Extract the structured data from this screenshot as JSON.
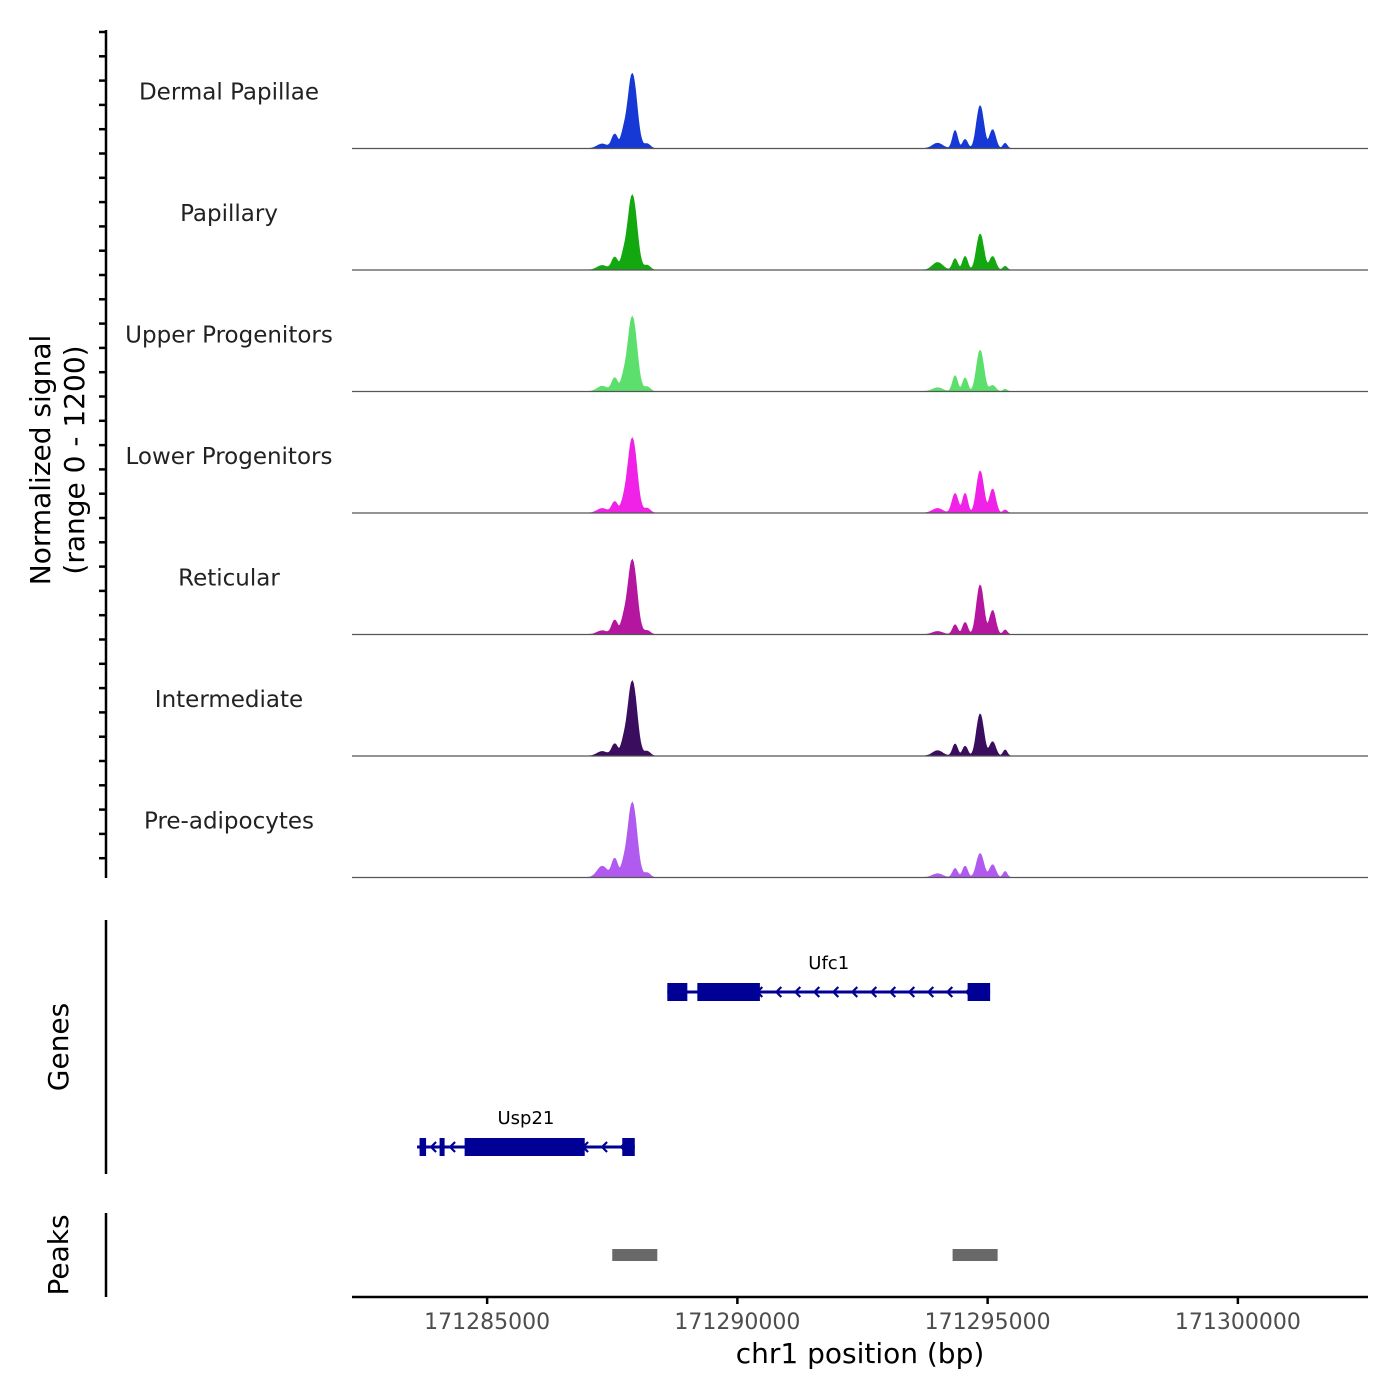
{
  "chart_data": {
    "type": "area",
    "title": "",
    "ylabel_line1": "Normalized signal",
    "ylabel_line2": "(range 0 - 1200)",
    "xlabel": "chr1 position (bp)",
    "x_range": [
      171282300,
      171302600
    ],
    "y_range": [
      0,
      1200
    ],
    "x_ticks": [
      171285000,
      171290000,
      171295000,
      171300000
    ],
    "x_tick_labels": [
      "171285000",
      "171290000",
      "171295000",
      "171300000"
    ],
    "series": [
      {
        "name": "Dermal Papillae",
        "color": "#1639d6",
        "peaks": [
          {
            "x": 171287300,
            "h": 0.06,
            "w": 100
          },
          {
            "x": 171287550,
            "h": 0.19,
            "w": 60
          },
          {
            "x": 171287720,
            "h": 0.15,
            "w": 50
          },
          {
            "x": 171287900,
            "h": 1.0,
            "w": 90
          },
          {
            "x": 171288200,
            "h": 0.06,
            "w": 60
          },
          {
            "x": 171294000,
            "h": 0.07,
            "w": 100
          },
          {
            "x": 171294350,
            "h": 0.24,
            "w": 50
          },
          {
            "x": 171294550,
            "h": 0.12,
            "w": 50
          },
          {
            "x": 171294850,
            "h": 0.57,
            "w": 70
          },
          {
            "x": 171295100,
            "h": 0.25,
            "w": 60
          },
          {
            "x": 171295350,
            "h": 0.07,
            "w": 40
          }
        ]
      },
      {
        "name": "Papillary",
        "color": "#13a810",
        "peaks": [
          {
            "x": 171287300,
            "h": 0.06,
            "w": 100
          },
          {
            "x": 171287550,
            "h": 0.17,
            "w": 60
          },
          {
            "x": 171287720,
            "h": 0.14,
            "w": 50
          },
          {
            "x": 171287900,
            "h": 1.0,
            "w": 90
          },
          {
            "x": 171288200,
            "h": 0.06,
            "w": 60
          },
          {
            "x": 171294000,
            "h": 0.1,
            "w": 100
          },
          {
            "x": 171294350,
            "h": 0.15,
            "w": 50
          },
          {
            "x": 171294550,
            "h": 0.18,
            "w": 50
          },
          {
            "x": 171294850,
            "h": 0.48,
            "w": 70
          },
          {
            "x": 171295100,
            "h": 0.18,
            "w": 60
          },
          {
            "x": 171295350,
            "h": 0.05,
            "w": 40
          }
        ]
      },
      {
        "name": "Upper Progenitors",
        "color": "#5cdf6c",
        "peaks": [
          {
            "x": 171287300,
            "h": 0.07,
            "w": 100
          },
          {
            "x": 171287550,
            "h": 0.18,
            "w": 60
          },
          {
            "x": 171287720,
            "h": 0.13,
            "w": 50
          },
          {
            "x": 171287900,
            "h": 1.0,
            "w": 90
          },
          {
            "x": 171288200,
            "h": 0.06,
            "w": 60
          },
          {
            "x": 171294000,
            "h": 0.05,
            "w": 100
          },
          {
            "x": 171294350,
            "h": 0.21,
            "w": 50
          },
          {
            "x": 171294550,
            "h": 0.18,
            "w": 50
          },
          {
            "x": 171294850,
            "h": 0.55,
            "w": 70
          },
          {
            "x": 171295100,
            "h": 0.08,
            "w": 60
          },
          {
            "x": 171295350,
            "h": 0.03,
            "w": 40
          }
        ]
      },
      {
        "name": "Lower Progenitors",
        "color": "#f022e8",
        "peaks": [
          {
            "x": 171287300,
            "h": 0.06,
            "w": 100
          },
          {
            "x": 171287550,
            "h": 0.15,
            "w": 60
          },
          {
            "x": 171287720,
            "h": 0.1,
            "w": 50
          },
          {
            "x": 171287900,
            "h": 1.0,
            "w": 90
          },
          {
            "x": 171288200,
            "h": 0.06,
            "w": 60
          },
          {
            "x": 171294000,
            "h": 0.06,
            "w": 100
          },
          {
            "x": 171294350,
            "h": 0.26,
            "w": 60
          },
          {
            "x": 171294550,
            "h": 0.26,
            "w": 50
          },
          {
            "x": 171294850,
            "h": 0.56,
            "w": 70
          },
          {
            "x": 171295100,
            "h": 0.32,
            "w": 60
          },
          {
            "x": 171295350,
            "h": 0.04,
            "w": 40
          }
        ]
      },
      {
        "name": "Reticular",
        "color": "#b5169f",
        "peaks": [
          {
            "x": 171287300,
            "h": 0.05,
            "w": 100
          },
          {
            "x": 171287550,
            "h": 0.19,
            "w": 60
          },
          {
            "x": 171287720,
            "h": 0.14,
            "w": 50
          },
          {
            "x": 171287900,
            "h": 1.0,
            "w": 90
          },
          {
            "x": 171288200,
            "h": 0.05,
            "w": 60
          },
          {
            "x": 171294000,
            "h": 0.04,
            "w": 100
          },
          {
            "x": 171294350,
            "h": 0.13,
            "w": 50
          },
          {
            "x": 171294550,
            "h": 0.16,
            "w": 50
          },
          {
            "x": 171294850,
            "h": 0.66,
            "w": 70
          },
          {
            "x": 171295100,
            "h": 0.32,
            "w": 60
          },
          {
            "x": 171295350,
            "h": 0.06,
            "w": 40
          }
        ]
      },
      {
        "name": "Intermediate",
        "color": "#3a0d5e",
        "peaks": [
          {
            "x": 171287300,
            "h": 0.06,
            "w": 100
          },
          {
            "x": 171287550,
            "h": 0.16,
            "w": 60
          },
          {
            "x": 171287720,
            "h": 0.13,
            "w": 50
          },
          {
            "x": 171287900,
            "h": 1.0,
            "w": 90
          },
          {
            "x": 171288200,
            "h": 0.06,
            "w": 60
          },
          {
            "x": 171294000,
            "h": 0.07,
            "w": 100
          },
          {
            "x": 171294350,
            "h": 0.16,
            "w": 50
          },
          {
            "x": 171294550,
            "h": 0.13,
            "w": 50
          },
          {
            "x": 171294850,
            "h": 0.56,
            "w": 70
          },
          {
            "x": 171295100,
            "h": 0.19,
            "w": 60
          },
          {
            "x": 171295350,
            "h": 0.08,
            "w": 40
          }
        ]
      },
      {
        "name": "Pre-adipocytes",
        "color": "#b15aef",
        "peaks": [
          {
            "x": 171287300,
            "h": 0.15,
            "w": 100
          },
          {
            "x": 171287550,
            "h": 0.25,
            "w": 60
          },
          {
            "x": 171287720,
            "h": 0.12,
            "w": 50
          },
          {
            "x": 171287900,
            "h": 1.0,
            "w": 90
          },
          {
            "x": 171288200,
            "h": 0.06,
            "w": 60
          },
          {
            "x": 171294000,
            "h": 0.05,
            "w": 100
          },
          {
            "x": 171294350,
            "h": 0.12,
            "w": 50
          },
          {
            "x": 171294550,
            "h": 0.15,
            "w": 50
          },
          {
            "x": 171294850,
            "h": 0.32,
            "w": 70
          },
          {
            "x": 171295100,
            "h": 0.17,
            "w": 60
          },
          {
            "x": 171295350,
            "h": 0.08,
            "w": 40
          }
        ]
      }
    ],
    "genes": [
      {
        "name": "Ufc1",
        "strand": "-",
        "start": 171288600,
        "end": 171295050,
        "exons": [
          [
            171288600,
            171289000
          ],
          [
            171289200,
            171290450
          ],
          [
            171294600,
            171295050
          ]
        ]
      },
      {
        "name": "Usp21",
        "strand": "-",
        "start": 171283600,
        "end": 171287950,
        "exons": [
          [
            171283650,
            171283780
          ],
          [
            171284050,
            171284150
          ],
          [
            171284550,
            171286950
          ],
          [
            171287700,
            171287950
          ]
        ]
      }
    ],
    "peaks": [
      [
        171287500,
        171288400
      ],
      [
        171294300,
        171295200
      ]
    ],
    "genes_label": "Genes",
    "peaks_label": "Peaks"
  }
}
